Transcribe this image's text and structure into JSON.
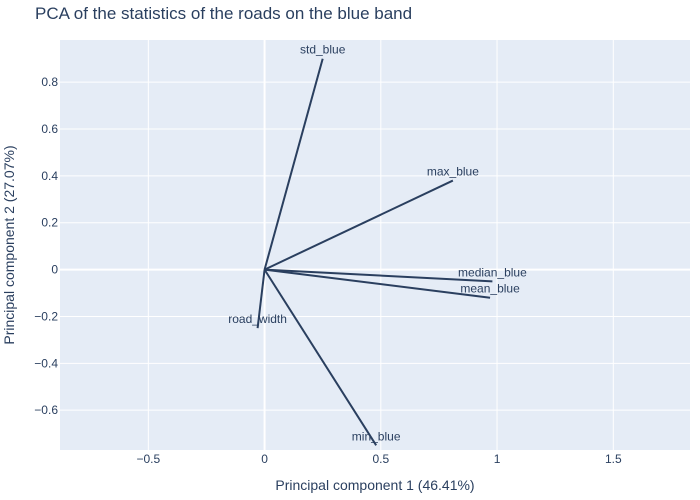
{
  "chart_data": {
    "type": "line",
    "title": "PCA of the statistics of the roads on the blue band",
    "xlabel": "Principal component 1 (46.41%)",
    "ylabel": "Principal component 2 (27.07%)",
    "xlim": [
      -0.88,
      1.83
    ],
    "ylim": [
      -0.77,
      0.98
    ],
    "xticks": [
      -0.5,
      0,
      0.5,
      1,
      1.5
    ],
    "yticks": [
      -0.6,
      -0.4,
      -0.2,
      0,
      0.2,
      0.4,
      0.6,
      0.8
    ],
    "grid": true,
    "plot_background": "#e5ecf6",
    "line_color": "#2a3f5f",
    "vectors": [
      {
        "label": "std_blue",
        "x": 0.25,
        "y": 0.9
      },
      {
        "label": "max_blue",
        "x": 0.81,
        "y": 0.38
      },
      {
        "label": "median_blue",
        "x": 0.98,
        "y": -0.05
      },
      {
        "label": "mean_blue",
        "x": 0.97,
        "y": -0.12
      },
      {
        "label": "road_width",
        "x": -0.03,
        "y": -0.25
      },
      {
        "label": "min_blue",
        "x": 0.48,
        "y": -0.75
      }
    ]
  }
}
